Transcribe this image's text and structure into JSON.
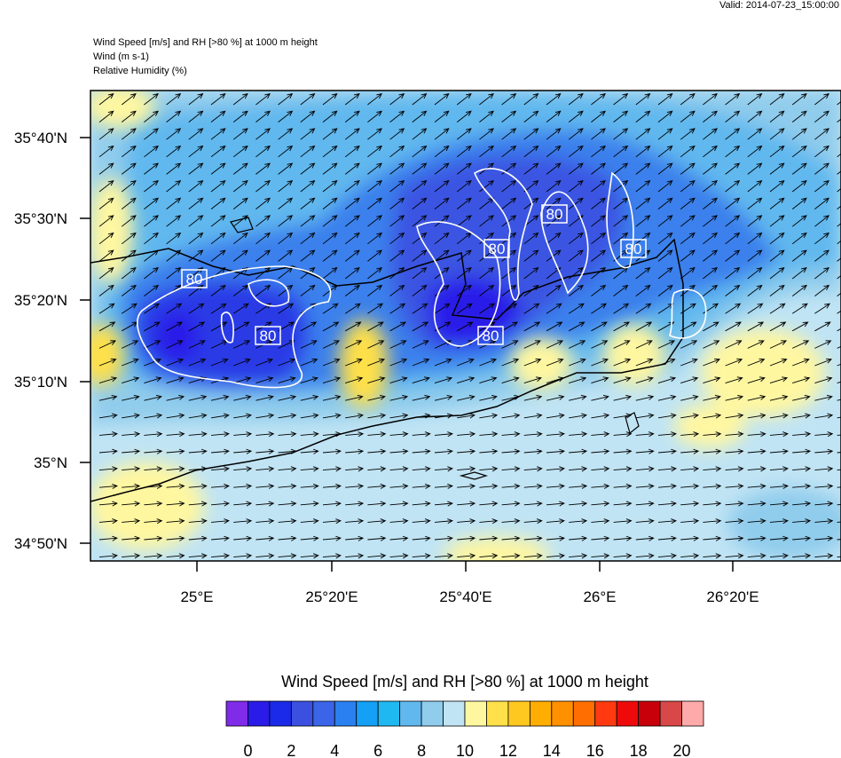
{
  "header": {
    "valid": "Valid: 2014-07-23_15:00:00",
    "titles": [
      "Wind Speed [m/s] and RH [>80 %] at 1000 m height",
      "Wind   (m s-1)",
      "Relative Humidity   (%)"
    ]
  },
  "map": {
    "lat_labels": [
      "35°40'N",
      "35°30'N",
      "35°20'N",
      "35°10'N",
      "35°N",
      "34°50'N"
    ],
    "lon_labels": [
      "25°E",
      "25°20'E",
      "25°40'E",
      "26°E",
      "26°20'E"
    ],
    "contour_labels": [
      "80",
      "80",
      "80",
      "80",
      "80",
      "80"
    ]
  },
  "colorbar": {
    "title": "Wind Speed [m/s] and RH [>80 %] at 1000 m height",
    "colors": [
      "#7f2be8",
      "#2a1be8",
      "#1a2ae8",
      "#3b50e0",
      "#3a65e8",
      "#2a80f0",
      "#14a0f5",
      "#20b8f0",
      "#60b8ee",
      "#90ccec",
      "#c0e4f4",
      "#fff7a0",
      "#ffe04a",
      "#ffc820",
      "#ffad00",
      "#ff9000",
      "#ff6e00",
      "#ff3a10",
      "#ee0a0a",
      "#c8000a",
      "#d84848",
      "#ffaaaa"
    ],
    "ticks": [
      0,
      2,
      4,
      6,
      8,
      10,
      12,
      14,
      16,
      18,
      20
    ]
  }
}
